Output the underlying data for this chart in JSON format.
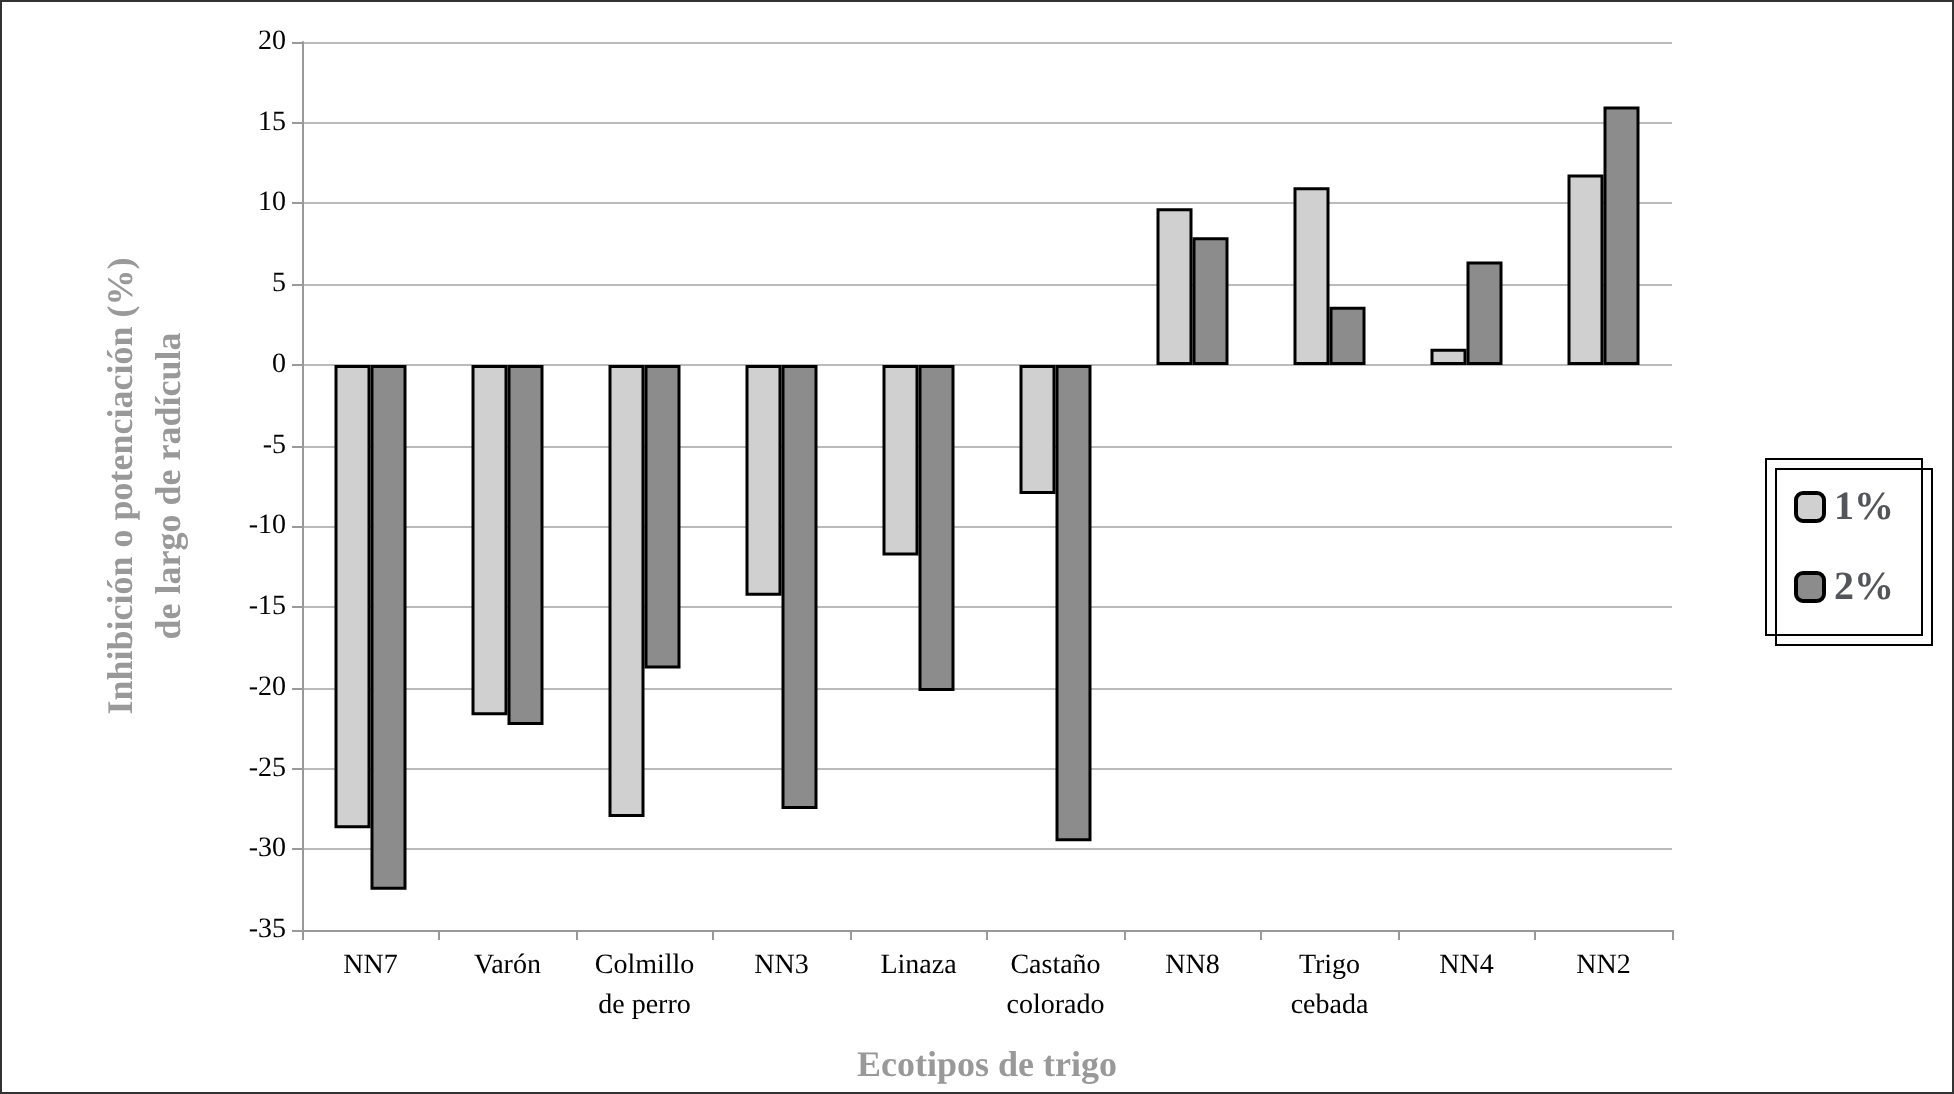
{
  "chart_data": {
    "type": "bar",
    "xlabel": "Ecotipos de trigo",
    "ylabel": "Inhibición o potenciación (%)\nde largo de radícula",
    "categories": [
      "NN7",
      "Varón",
      "Colmillo\nde perro",
      "NN3",
      "Linaza",
      "Castaño\ncolorado",
      "NN8",
      "Trigo\ncebada",
      "NN4",
      "NN2"
    ],
    "series": [
      {
        "name": "1%",
        "color": "#d0d0d0",
        "values": [
          -28.7,
          -21.7,
          -28,
          -14.3,
          -11.8,
          -8,
          9.7,
          11,
          1,
          11.8
        ]
      },
      {
        "name": "2%",
        "color": "#8c8c8c",
        "values": [
          -32.5,
          -22.3,
          -18.8,
          -27.5,
          -20.2,
          -29.5,
          7.9,
          3.6,
          6.4,
          16
        ]
      }
    ],
    "ylim": [
      -35,
      20
    ],
    "yticks": [
      -35,
      -30,
      -25,
      -20,
      -15,
      -10,
      -5,
      0,
      5,
      10,
      15,
      20
    ],
    "grid": "y",
    "legend": "right"
  }
}
